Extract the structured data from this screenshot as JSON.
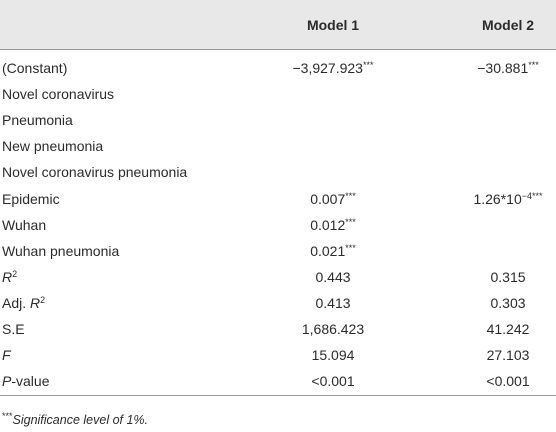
{
  "table": {
    "header": [
      "Model 1",
      "Model 2"
    ],
    "rows": [
      {
        "label": [
          "(Constant)"
        ],
        "m1": [
          "−3,927.923",
          {
            "text": "***",
            "sup": true
          }
        ],
        "m2": [
          "−30.881",
          {
            "text": "***",
            "sup": true
          }
        ]
      },
      {
        "label": [
          "Novel coronavirus"
        ],
        "m1": [],
        "m2": []
      },
      {
        "label": [
          "Pneumonia"
        ],
        "m1": [],
        "m2": []
      },
      {
        "label": [
          "New pneumonia"
        ],
        "m1": [],
        "m2": []
      },
      {
        "label": [
          "Novel coronavirus pneumonia"
        ],
        "m1": [],
        "m2": []
      },
      {
        "label": [
          "Epidemic"
        ],
        "m1": [
          "0.007",
          {
            "text": "***",
            "sup": true
          }
        ],
        "m2": [
          "1.26*10",
          {
            "text": "−4",
            "sup": true
          },
          {
            "text": "***",
            "sup": true
          }
        ]
      },
      {
        "label": [
          "Wuhan"
        ],
        "m1": [
          "0.012",
          {
            "text": "***",
            "sup": true
          }
        ],
        "m2": []
      },
      {
        "label": [
          "Wuhan pneumonia"
        ],
        "m1": [
          "0.021",
          {
            "text": "***",
            "sup": true
          }
        ],
        "m2": []
      },
      {
        "label": [
          {
            "text": "R",
            "italic": true
          },
          {
            "text": "2",
            "sup": true
          }
        ],
        "m1": [
          "0.443"
        ],
        "m2": [
          "0.315"
        ]
      },
      {
        "label": [
          "Adj. ",
          {
            "text": "R",
            "italic": true
          },
          {
            "text": "2",
            "sup": true
          }
        ],
        "m1": [
          "0.413"
        ],
        "m2": [
          "0.303"
        ]
      },
      {
        "label": [
          "S.E"
        ],
        "m1": [
          "1,686.423"
        ],
        "m2": [
          "41.242"
        ]
      },
      {
        "label": [
          {
            "text": "F",
            "italic": true
          }
        ],
        "m1": [
          "15.094"
        ],
        "m2": [
          "27.103"
        ]
      },
      {
        "label": [
          {
            "text": "P",
            "italic": true
          },
          "-value"
        ],
        "m1": [
          "<0.001"
        ],
        "m2": [
          "<0.001"
        ]
      }
    ],
    "footnote": [
      {
        "text": "***",
        "sup": true
      },
      {
        "text": "Significance level of 1%.",
        "italic": true
      }
    ]
  }
}
